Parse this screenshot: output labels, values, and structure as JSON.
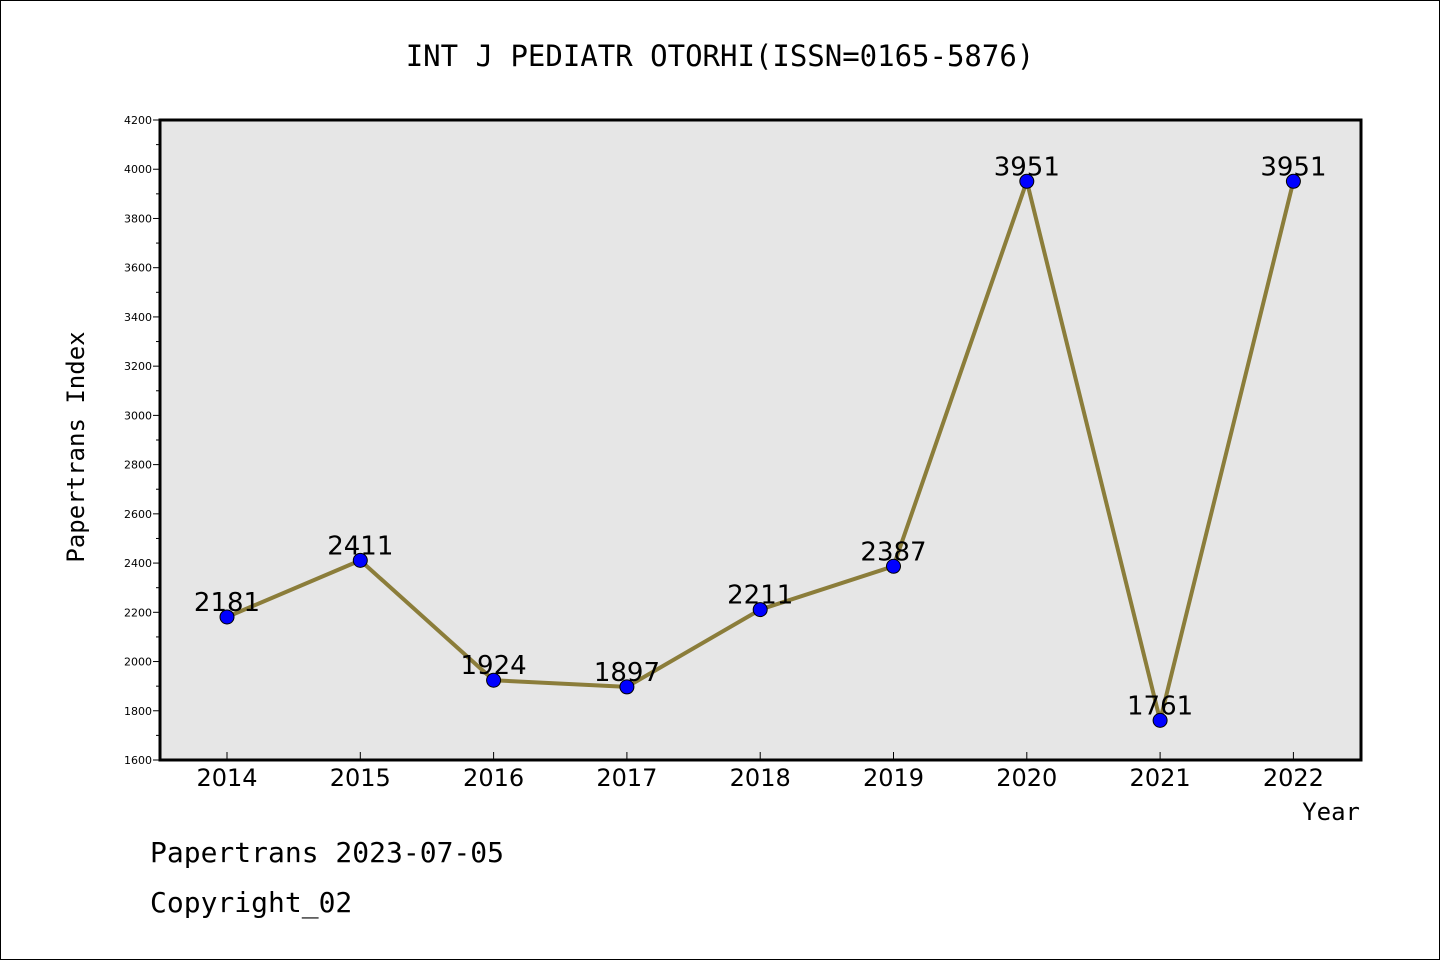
{
  "chart_data": {
    "type": "line",
    "title": "INT J PEDIATR OTORHI(ISSN=0165-5876)",
    "xlabel": "Year",
    "ylabel": "Papertrans Index",
    "categories": [
      "2014",
      "2015",
      "2016",
      "2017",
      "2018",
      "2019",
      "2020",
      "2021",
      "2022"
    ],
    "series": [
      {
        "values": [
          2181,
          2411,
          1924,
          1897,
          2211,
          2387,
          3951,
          1761,
          3951
        ]
      }
    ],
    "data_labels": [
      "2181",
      "2411",
      "1924",
      "1897",
      "2211",
      "2387",
      "3951",
      "1761",
      "3951"
    ],
    "ylim": [
      1600,
      4200
    ],
    "yticks": [
      "1600",
      "1800",
      "2000",
      "2200",
      "2400",
      "2600",
      "2800",
      "3000",
      "3200",
      "3400",
      "3600",
      "3800",
      "4000",
      "4200"
    ],
    "grid": false,
    "colors": {
      "line": "#8B7D3A",
      "marker": "#0000FF",
      "plot_bg": "#E6E6E6"
    }
  },
  "footer": {
    "line1": "Papertrans 2023-07-05",
    "line2": "Copyright_02"
  }
}
